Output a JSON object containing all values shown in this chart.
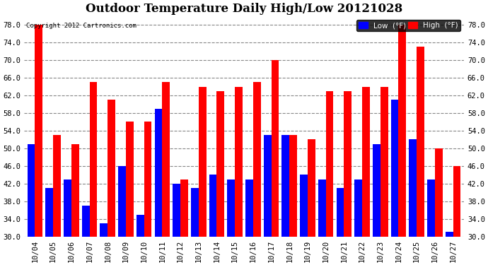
{
  "title": "Outdoor Temperature Daily High/Low 20121028",
  "copyright": "Copyright 2012 Cartronics.com",
  "legend_low": "Low  (°F)",
  "legend_high": "High  (°F)",
  "categories": [
    "10/04",
    "10/05",
    "10/06",
    "10/07",
    "10/08",
    "10/09",
    "10/10",
    "10/11",
    "10/12",
    "10/13",
    "10/14",
    "10/15",
    "10/16",
    "10/17",
    "10/18",
    "10/19",
    "10/20",
    "10/21",
    "10/22",
    "10/23",
    "10/24",
    "10/25",
    "10/26",
    "10/27"
  ],
  "high": [
    78,
    53,
    51,
    65,
    61,
    56,
    56,
    65,
    43,
    64,
    63,
    64,
    65,
    70,
    53,
    52,
    63,
    63,
    64,
    64,
    78,
    73,
    50,
    46
  ],
  "low": [
    51,
    41,
    43,
    37,
    33,
    46,
    35,
    59,
    42,
    41,
    44,
    43,
    43,
    53,
    53,
    44,
    43,
    41,
    43,
    51,
    61,
    52,
    43,
    31
  ],
  "ylim_min": 30,
  "ylim_max": 80,
  "yticks": [
    30.0,
    34.0,
    38.0,
    42.0,
    46.0,
    50.0,
    54.0,
    58.0,
    62.0,
    66.0,
    70.0,
    74.0,
    78.0
  ],
  "bar_color_low": "#0000ff",
  "bar_color_high": "#ff0000",
  "background_color": "#ffffff",
  "grid_color": "#888888",
  "title_fontsize": 12,
  "tick_fontsize": 7.5,
  "bar_width": 0.42
}
